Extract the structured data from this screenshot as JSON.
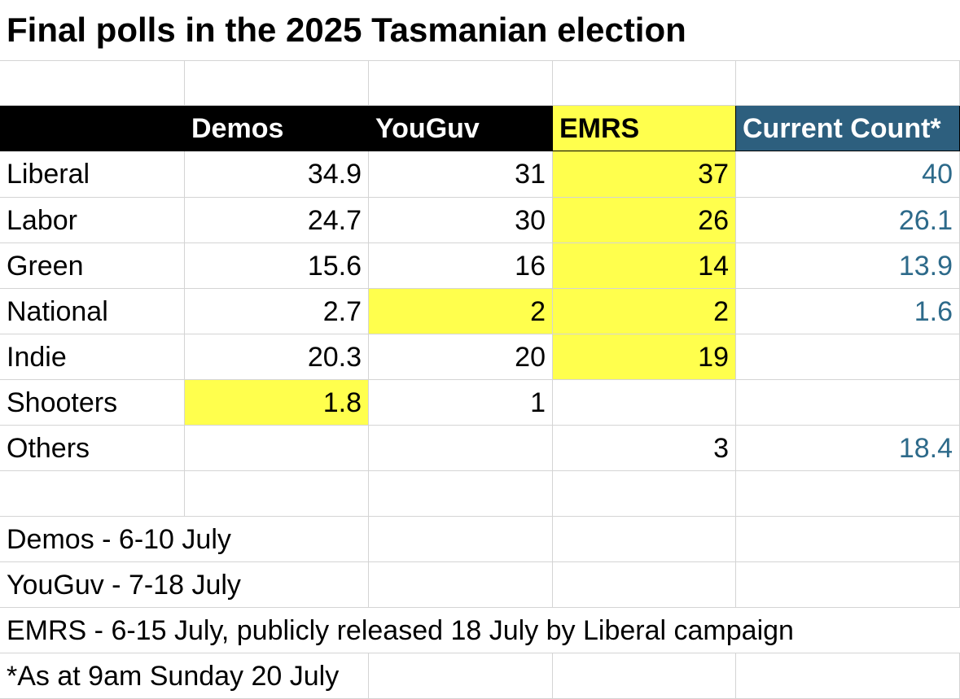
{
  "title": "Final polls in the 2025 Tasmanian election",
  "headers": [
    "",
    "Demos",
    "YouGuv",
    "EMRS",
    "Current Count*"
  ],
  "rows": [
    {
      "party": "Liberal",
      "demos": "34.9",
      "youguv": "31",
      "emrs": "37",
      "count": "40"
    },
    {
      "party": "Labor",
      "demos": "24.7",
      "youguv": "30",
      "emrs": "26",
      "count": "26.1"
    },
    {
      "party": "Green",
      "demos": "15.6",
      "youguv": "16",
      "emrs": "14",
      "count": "13.9"
    },
    {
      "party": "National",
      "demos": "2.7",
      "youguv": "2",
      "emrs": "2",
      "count": "1.6"
    },
    {
      "party": "Indie",
      "demos": "20.3",
      "youguv": "20",
      "emrs": "19",
      "count": ""
    },
    {
      "party": "Shooters",
      "demos": "1.8",
      "youguv": "1",
      "emrs": "",
      "count": ""
    },
    {
      "party": "Others",
      "demos": "",
      "youguv": "",
      "emrs": "3",
      "count": "18.4"
    }
  ],
  "notes": [
    "Demos - 6-10 July",
    "YouGuv - 7-18 July",
    "EMRS - 6-15 July, publicly released 18 July by Liberal campaign",
    "*As at 9am Sunday 20 July"
  ],
  "colors": {
    "header_bg": "#000000",
    "header_text": "#ffffff",
    "highlight_yellow": "#ffff4d",
    "current_count_header_bg": "#2d5f7e",
    "current_count_text": "#2d6a8a"
  }
}
